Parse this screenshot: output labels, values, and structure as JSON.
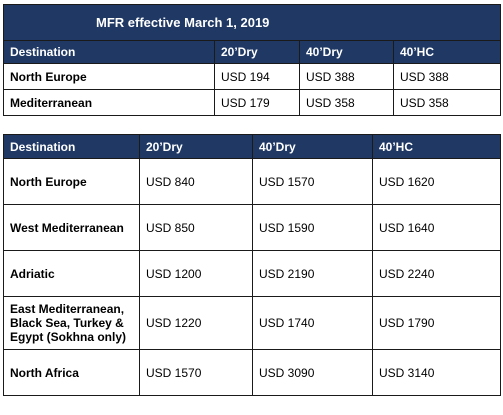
{
  "table1": {
    "title": "MFR effective March 1, 2019",
    "headers": [
      "Destination",
      "20’Dry",
      "40’Dry",
      "40’HC"
    ],
    "rows": [
      [
        "North Europe",
        "USD 194",
        "USD 388",
        "USD 388"
      ],
      [
        "Mediterranean",
        "USD 179",
        "USD 358",
        "USD 358"
      ]
    ]
  },
  "table2": {
    "headers": [
      "Destination",
      "20’Dry",
      "40’Dry",
      "40’HC"
    ],
    "rows": [
      [
        "North Europe",
        "USD 840",
        "USD 1570",
        "USD 1620"
      ],
      [
        "West Mediterranean",
        "USD 850",
        "USD 1590",
        "USD 1640"
      ],
      [
        "Adriatic",
        "USD 1200",
        "USD 2190",
        "USD 2240"
      ],
      [
        "East Mediterranean, Black Sea, Turkey & Egypt (Sokhna only)",
        "USD 1220",
        "USD 1740",
        "USD 1790"
      ],
      [
        "North Africa",
        "USD 1570",
        "USD 3090",
        "USD 3140"
      ]
    ]
  },
  "colors": {
    "header_bg": "#1f3864",
    "header_text": "#ffffff",
    "border": "#1a1a1a"
  }
}
